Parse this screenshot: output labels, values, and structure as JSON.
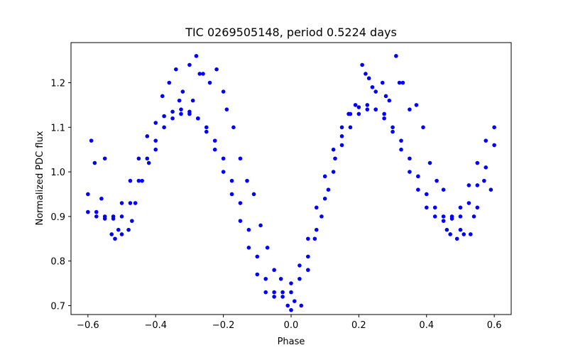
{
  "chart_data": {
    "type": "scatter",
    "title": "TIC 0269505148, period 0.5224 days",
    "xlabel": "Phase",
    "ylabel": "Normalized PDC flux",
    "xlim": [
      -0.65,
      0.65
    ],
    "ylim": [
      0.68,
      1.29
    ],
    "xticks": [
      -0.6,
      -0.4,
      -0.2,
      0.0,
      0.2,
      0.4,
      0.6
    ],
    "xtick_labels": [
      "−0.6",
      "−0.4",
      "−0.2",
      "0.0",
      "0.2",
      "0.4",
      "0.6"
    ],
    "yticks": [
      0.7,
      0.8,
      0.9,
      1.0,
      1.1,
      1.2
    ],
    "ytick_labels": [
      "0.7",
      "0.8",
      "0.9",
      "1.0",
      "1.1",
      "1.2"
    ],
    "grid": false,
    "marker_color": "#0000ff",
    "series": [
      {
        "x": [
          -0.6,
          -0.575,
          -0.55,
          -0.525,
          -0.5,
          -0.475,
          -0.45,
          -0.425,
          -0.4,
          -0.375,
          -0.35,
          -0.325,
          -0.3,
          -0.275,
          -0.25,
          -0.225,
          -0.2,
          -0.175,
          -0.15,
          -0.125,
          -0.1,
          -0.075,
          -0.05,
          -0.025,
          0.0,
          0.025,
          0.05,
          0.075,
          0.1,
          0.125,
          0.15,
          0.175,
          0.2,
          0.225,
          0.25,
          0.275,
          0.3,
          0.325,
          0.35,
          0.375,
          0.4,
          0.425,
          0.45,
          0.475,
          0.5,
          0.525,
          0.55,
          0.575,
          0.6
        ],
        "y": [
          0.91,
          0.9,
          0.895,
          0.9,
          0.93,
          0.98,
          1.03,
          1.08,
          1.11,
          1.125,
          1.135,
          1.14,
          1.135,
          1.12,
          1.09,
          1.05,
          1.0,
          0.95,
          0.89,
          0.83,
          0.77,
          0.73,
          0.72,
          0.73,
          0.75,
          0.79,
          0.85,
          0.92,
          0.99,
          1.05,
          1.1,
          1.13,
          1.145,
          1.15,
          1.14,
          1.12,
          1.09,
          1.05,
          1.0,
          0.96,
          0.92,
          0.9,
          0.89,
          0.9,
          0.92,
          0.97,
          1.02,
          1.07,
          1.1
        ]
      },
      {
        "x": [
          -0.6,
          -0.575,
          -0.55,
          -0.525,
          -0.5,
          -0.475,
          -0.45,
          -0.425,
          -0.4,
          -0.375,
          -0.35,
          -0.325,
          -0.3,
          -0.275,
          -0.25,
          -0.225,
          -0.2,
          -0.175,
          -0.15,
          -0.125,
          -0.1,
          -0.075,
          -0.05,
          -0.025,
          0.0,
          0.025,
          0.05,
          0.075,
          0.1,
          0.125,
          0.15,
          0.175,
          0.2,
          0.225,
          0.25,
          0.275,
          0.3,
          0.325,
          0.35,
          0.375,
          0.4,
          0.425,
          0.45,
          0.475,
          0.5,
          0.525,
          0.55,
          0.575,
          0.6
        ],
        "y": [
          0.95,
          0.91,
          0.9,
          0.895,
          0.9,
          0.93,
          0.98,
          1.03,
          1.07,
          1.1,
          1.12,
          1.13,
          1.13,
          1.12,
          1.1,
          1.07,
          1.03,
          0.98,
          0.93,
          0.87,
          0.81,
          0.76,
          0.73,
          0.72,
          0.73,
          0.76,
          0.81,
          0.87,
          0.94,
          1.0,
          1.06,
          1.1,
          1.13,
          1.14,
          1.14,
          1.13,
          1.1,
          1.07,
          1.03,
          0.99,
          0.95,
          0.92,
          0.9,
          0.895,
          0.9,
          0.93,
          0.97,
          1.01,
          1.06
        ]
      },
      {
        "x": [
          -0.59,
          -0.58,
          -0.56,
          -0.53,
          -0.52,
          -0.5,
          -0.48,
          -0.46,
          -0.44,
          -0.42,
          -0.4,
          -0.38,
          -0.36,
          -0.34,
          -0.32,
          -0.3,
          -0.29,
          -0.28,
          -0.26,
          -0.24,
          -0.22,
          -0.2,
          -0.19,
          -0.17,
          -0.15,
          -0.13,
          -0.11,
          -0.09,
          -0.07,
          -0.05,
          -0.03,
          -0.01,
          0.0,
          0.01,
          0.03,
          0.05,
          0.07,
          0.09,
          0.11,
          0.13,
          0.15,
          0.17,
          0.19,
          0.21,
          0.22,
          0.23,
          0.25,
          0.27,
          0.29,
          0.31,
          0.33,
          0.35,
          0.37,
          0.39,
          0.41,
          0.43,
          0.45,
          0.47,
          0.49,
          0.51,
          0.53,
          0.55,
          0.57,
          0.59,
          -0.55,
          -0.51,
          -0.47,
          0.46,
          0.5,
          0.54,
          -0.33,
          -0.27,
          0.24,
          0.28,
          0.32
        ],
        "y": [
          1.07,
          1.02,
          0.94,
          0.86,
          0.85,
          0.86,
          0.87,
          0.93,
          0.98,
          1.02,
          1.05,
          1.17,
          1.2,
          1.23,
          1.18,
          1.24,
          1.16,
          1.26,
          1.22,
          1.2,
          1.23,
          1.18,
          1.14,
          1.1,
          1.03,
          0.98,
          0.95,
          0.88,
          0.83,
          0.78,
          0.76,
          0.7,
          0.69,
          0.71,
          0.7,
          0.78,
          0.85,
          0.9,
          0.96,
          1.03,
          1.08,
          1.13,
          1.15,
          1.24,
          1.22,
          1.21,
          1.18,
          1.2,
          1.16,
          1.26,
          1.2,
          1.14,
          1.15,
          1.1,
          1.02,
          0.98,
          0.96,
          0.86,
          0.85,
          0.86,
          0.86,
          0.92,
          0.98,
          0.96,
          1.03,
          0.87,
          0.89,
          0.87,
          0.87,
          0.9,
          1.16,
          1.22,
          1.19,
          1.17,
          1.2
        ]
      }
    ]
  }
}
